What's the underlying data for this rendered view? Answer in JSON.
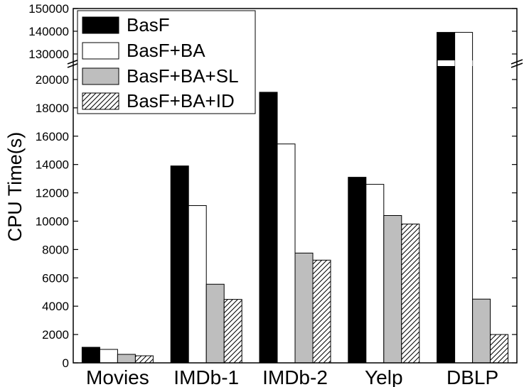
{
  "chart_data": {
    "type": "bar",
    "title": "",
    "xlabel": "",
    "ylabel": "CPU Time(s)",
    "categories": [
      "Movies",
      "IMDb-1",
      "IMDb-2",
      "Yelp",
      "DBLP"
    ],
    "series": [
      {
        "name": "BasF",
        "style": "solid",
        "values": [
          1100,
          13900,
          19100,
          13100,
          139500
        ]
      },
      {
        "name": "BasF+BA",
        "style": "white",
        "values": [
          950,
          11100,
          15450,
          12600,
          139500
        ]
      },
      {
        "name": "BasF+BA+SL",
        "style": "gray",
        "values": [
          600,
          5550,
          7750,
          10400,
          4500
        ]
      },
      {
        "name": "BasF+BA+ID",
        "style": "hatched",
        "values": [
          500,
          4480,
          7250,
          9800,
          2000
        ]
      }
    ],
    "y_axis_broken": true,
    "lower_segment": {
      "ylim": [
        0,
        21000
      ],
      "ticks": [
        0,
        2000,
        4000,
        6000,
        8000,
        10000,
        12000,
        14000,
        16000,
        18000,
        20000
      ]
    },
    "upper_segment": {
      "ylim": [
        125000,
        150000
      ],
      "ticks": [
        130000,
        140000,
        150000
      ]
    },
    "legend_position": "top-left",
    "colors": {
      "solid": "#000000",
      "white": "#ffffff",
      "gray": "#bebebe",
      "hatched": "#000000"
    }
  }
}
